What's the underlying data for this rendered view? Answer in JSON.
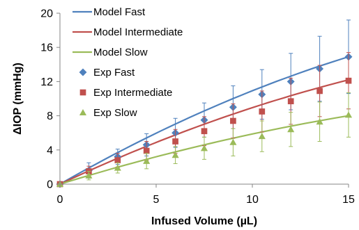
{
  "chart_data": {
    "type": "line",
    "xlabel": "Infused Volume (µL)",
    "ylabel": "ΔIOP (mmHg)",
    "xlim": [
      0,
      15
    ],
    "ylim": [
      0,
      20
    ],
    "x_ticks": [
      "0",
      "5",
      "10",
      "15"
    ],
    "y_ticks": [
      "0",
      "4",
      "8",
      "12",
      "16",
      "20"
    ],
    "grid": false,
    "legend_position": "top-left",
    "model_series": [
      {
        "name": "Model Fast",
        "color": "#4f81bd",
        "x": [
          0,
          15
        ],
        "y": [
          0,
          14.9
        ],
        "curvature": 0.3
      },
      {
        "name": "Model Intermediate",
        "color": "#c0504d",
        "x": [
          0,
          15
        ],
        "y": [
          0,
          12.2
        ],
        "curvature": 0.3
      },
      {
        "name": "Model Slow",
        "color": "#9bbb59",
        "x": [
          0,
          15
        ],
        "y": [
          0,
          8.0
        ],
        "curvature": 0.3
      }
    ],
    "exp_series": [
      {
        "name": "Exp Fast",
        "color": "#4f81bd",
        "marker": "diamond",
        "x": [
          0,
          1.5,
          3,
          4.5,
          6,
          7.5,
          9,
          10.5,
          12,
          13.5,
          15
        ],
        "y": [
          0,
          1.6,
          3.2,
          4.6,
          6.0,
          7.5,
          9.0,
          10.5,
          12.0,
          13.5,
          14.9
        ],
        "err": [
          0,
          0.9,
          0.9,
          1.3,
          1.7,
          2.0,
          2.5,
          2.9,
          3.3,
          3.8,
          4.3
        ]
      },
      {
        "name": "Exp Intermediate",
        "color": "#c0504d",
        "marker": "square",
        "x": [
          0,
          1.5,
          3,
          4.5,
          6,
          7.5,
          9,
          10.5,
          12,
          13.5,
          15
        ],
        "y": [
          0,
          1.5,
          2.8,
          3.9,
          5.0,
          6.2,
          7.4,
          8.5,
          9.7,
          10.9,
          12.1
        ],
        "err": [
          0,
          0.6,
          0.8,
          1.1,
          1.4,
          1.7,
          2.0,
          2.4,
          2.7,
          3.0,
          3.3
        ]
      },
      {
        "name": "Exp Slow",
        "color": "#9bbb59",
        "marker": "triangle",
        "x": [
          0,
          1.5,
          3,
          4.5,
          6,
          7.5,
          9,
          10.5,
          12,
          13.5,
          15
        ],
        "y": [
          0,
          1.0,
          1.9,
          2.7,
          3.4,
          4.2,
          4.9,
          5.6,
          6.4,
          7.3,
          8.1
        ],
        "err": [
          0,
          0.5,
          0.6,
          0.9,
          1.0,
          1.3,
          1.6,
          1.8,
          2.0,
          2.3,
          2.6
        ]
      }
    ]
  }
}
